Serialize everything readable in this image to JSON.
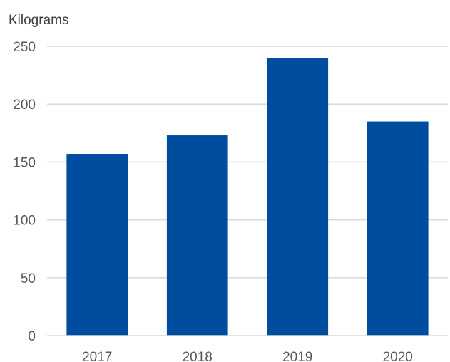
{
  "chart_data": {
    "type": "bar",
    "title": "",
    "xlabel": "",
    "ylabel": "Kilograms",
    "categories": [
      "2017",
      "2018",
      "2019",
      "2020"
    ],
    "values": [
      157,
      173,
      240,
      185
    ],
    "ylim": [
      0,
      250
    ],
    "yticks": [
      0,
      50,
      100,
      150,
      200,
      250
    ],
    "grid": true,
    "legend": "none",
    "bar_color": "#004C9E",
    "grid_color": "#D9D9D9"
  }
}
